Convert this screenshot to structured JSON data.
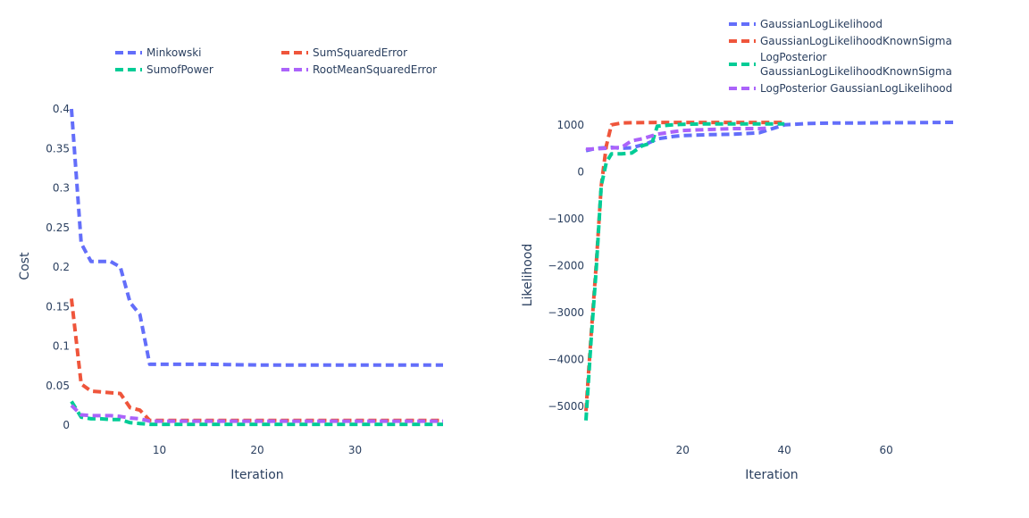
{
  "chart_data": [
    {
      "type": "line",
      "title": "",
      "xlabel": "Iteration",
      "ylabel": "Cost",
      "xlim": [
        1,
        39
      ],
      "ylim": [
        0,
        0.4
      ],
      "xticks": [
        10,
        20,
        30
      ],
      "yticks": [
        0,
        0.05,
        0.1,
        0.15,
        0.2,
        0.25,
        0.3,
        0.35,
        0.4
      ],
      "ytick_labels": [
        "0",
        "0.05",
        "0.1",
        "0.15",
        "0.2",
        "0.25",
        "0.3",
        "0.35",
        "0.4"
      ],
      "grid": false,
      "legend_position": "top",
      "series": [
        {
          "name": "Minkowski",
          "color": "#636efa",
          "dash": "dash",
          "x": [
            1,
            2,
            3,
            4,
            5,
            6,
            7,
            8,
            9,
            10,
            15,
            20,
            25,
            30,
            35,
            39
          ],
          "y": [
            0.4,
            0.23,
            0.207,
            0.207,
            0.207,
            0.2,
            0.155,
            0.14,
            0.077,
            0.077,
            0.077,
            0.076,
            0.076,
            0.076,
            0.076,
            0.076
          ]
        },
        {
          "name": "SumSquaredError",
          "color": "#ef553b",
          "dash": "dash",
          "x": [
            1,
            2,
            3,
            4,
            5,
            6,
            7,
            8,
            9,
            10,
            15,
            20,
            25,
            30,
            35,
            39
          ],
          "y": [
            0.16,
            0.052,
            0.043,
            0.042,
            0.041,
            0.04,
            0.022,
            0.019,
            0.006,
            0.006,
            0.006,
            0.006,
            0.006,
            0.006,
            0.006,
            0.006
          ]
        },
        {
          "name": "SumofPower",
          "color": "#00cc96",
          "dash": "dash",
          "x": [
            1,
            2,
            3,
            4,
            5,
            6,
            7,
            8,
            9,
            10,
            15,
            20,
            25,
            30,
            35,
            39
          ],
          "y": [
            0.03,
            0.01,
            0.008,
            0.008,
            0.007,
            0.007,
            0.003,
            0.002,
            0.001,
            0.001,
            0.001,
            0.001,
            0.001,
            0.001,
            0.001,
            0.001
          ]
        },
        {
          "name": "RootMeanSquaredError",
          "color": "#ab63fa",
          "dash": "dash",
          "x": [
            1,
            2,
            3,
            4,
            5,
            6,
            7,
            8,
            9,
            10,
            15,
            20,
            25,
            30,
            35,
            39
          ],
          "y": [
            0.025,
            0.013,
            0.012,
            0.012,
            0.012,
            0.011,
            0.009,
            0.008,
            0.005,
            0.005,
            0.005,
            0.005,
            0.005,
            0.005,
            0.005,
            0.005
          ]
        }
      ]
    },
    {
      "type": "line",
      "title": "",
      "xlabel": "Iteration",
      "ylabel": "Likelihood",
      "xlim": [
        1,
        74
      ],
      "ylim": [
        -5400,
        1300
      ],
      "xticks": [
        20,
        40,
        60
      ],
      "yticks": [
        1000,
        0,
        -1000,
        -2000,
        -3000,
        -4000,
        -5000
      ],
      "ytick_labels": [
        "1000",
        "0",
        "−1000",
        "−2000",
        "−3000",
        "−4000",
        "−5000"
      ],
      "grid": false,
      "legend_position": "top-right",
      "series": [
        {
          "name": "GaussianLogLikelihood",
          "color": "#636efa",
          "dash": "dash",
          "x": [
            1,
            3,
            6,
            8,
            10,
            13,
            15,
            18,
            20,
            25,
            30,
            35,
            40,
            45,
            50,
            55,
            60,
            65,
            70,
            74
          ],
          "y": [
            450,
            500,
            520,
            500,
            510,
            600,
            700,
            750,
            770,
            790,
            800,
            830,
            1000,
            1030,
            1040,
            1040,
            1045,
            1045,
            1050,
            1055
          ]
        },
        {
          "name": "GaussianLogLikelihoodKnownSigma",
          "color": "#ef553b",
          "dash": "dash",
          "x": [
            1,
            2,
            3,
            4,
            5,
            6,
            8,
            10,
            15,
            20,
            25,
            30,
            35,
            40
          ],
          "y": [
            -5100,
            -3500,
            -2000,
            -300,
            550,
            1000,
            1040,
            1045,
            1050,
            1050,
            1050,
            1050,
            1050,
            1050
          ]
        },
        {
          "name": "LogPosterior GaussianLogLikelihoodKnownSigma",
          "color": "#00cc96",
          "dash": "dash",
          "x": [
            1,
            2,
            3,
            4,
            5,
            6,
            8,
            10,
            12,
            14,
            15,
            18,
            20,
            25,
            30,
            35,
            40
          ],
          "y": [
            -5300,
            -3600,
            -2100,
            -300,
            200,
            380,
            380,
            400,
            550,
            620,
            970,
            1000,
            1010,
            1020,
            1020,
            1020,
            1020
          ]
        },
        {
          "name": "LogPosterior GaussianLogLikelihood",
          "color": "#ab63fa",
          "dash": "dash",
          "x": [
            1,
            3,
            5,
            8,
            10,
            12,
            15,
            18,
            20,
            25,
            30,
            35,
            37
          ],
          "y": [
            480,
            490,
            500,
            520,
            660,
            700,
            800,
            850,
            880,
            900,
            920,
            920,
            930
          ]
        }
      ]
    }
  ],
  "legend1": {
    "items": [
      "Minkowski",
      "SumSquaredError",
      "SumofPower",
      "RootMeanSquaredError"
    ]
  },
  "legend2": {
    "items": [
      [
        "GaussianLogLikelihood"
      ],
      [
        "GaussianLogLikelihoodKnownSigma"
      ],
      [
        "LogPosterior",
        "GaussianLogLikelihoodKnownSigma"
      ],
      [
        "LogPosterior GaussianLogLikelihood"
      ]
    ]
  }
}
